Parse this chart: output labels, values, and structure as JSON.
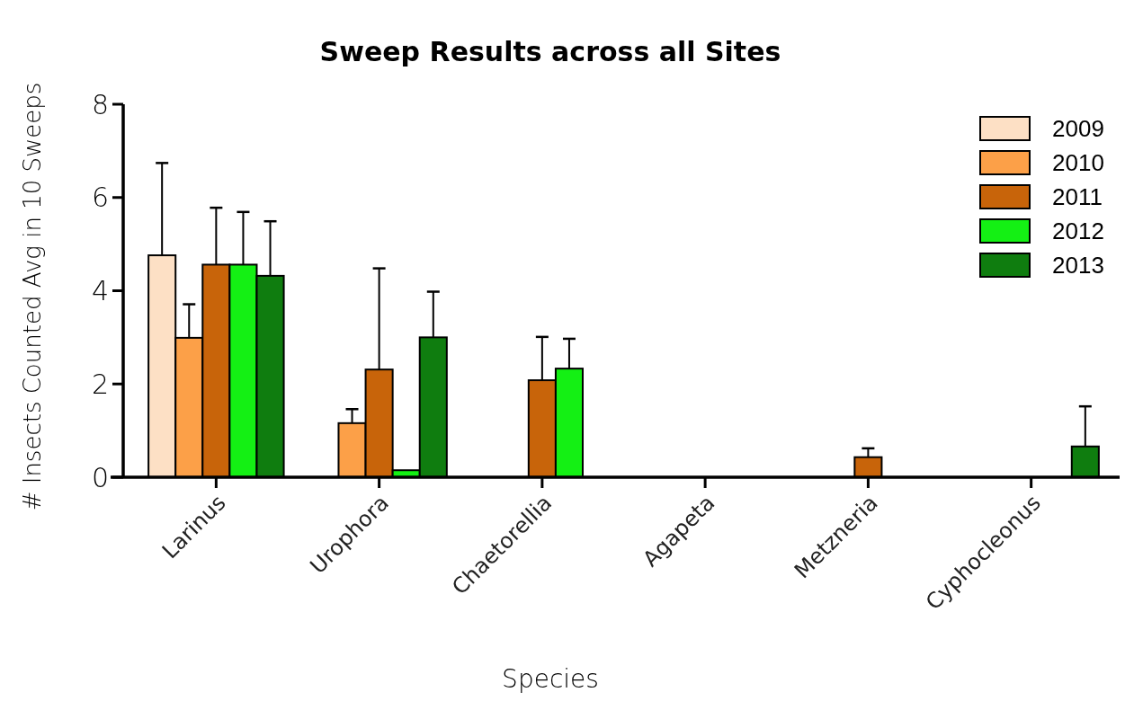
{
  "chart_data": {
    "type": "bar",
    "title": "Sweep Results across all Sites",
    "xlabel": "Species",
    "ylabel": "# Insects Counted Avg in 10 Sweeps",
    "categories": [
      "Larinus",
      "Urophora",
      "Chaetorellia",
      "Agapeta",
      "Metzneria",
      "Cyphocleonus"
    ],
    "ylim": [
      0,
      8
    ],
    "yticks": [
      0,
      2,
      4,
      6,
      8
    ],
    "legend": "top right",
    "series": [
      {
        "name": "2009",
        "color": "#fde0c5",
        "values": [
          4.76,
          null,
          null,
          null,
          null,
          null
        ],
        "errors": [
          [
            4.76,
            6.74
          ],
          null,
          null,
          null,
          null,
          null
        ]
      },
      {
        "name": "2010",
        "color": "#fca048",
        "values": [
          2.99,
          1.16,
          null,
          null,
          null,
          null
        ],
        "errors": [
          [
            2.99,
            3.71
          ],
          [
            1.16,
            1.46
          ],
          null,
          null,
          null,
          null
        ]
      },
      {
        "name": "2011",
        "color": "#c8640a",
        "values": [
          4.56,
          2.31,
          2.08,
          null,
          0.43,
          null
        ],
        "errors": [
          [
            4.56,
            5.78
          ],
          [
            2.31,
            4.48
          ],
          [
            2.08,
            3.01
          ],
          null,
          [
            0.43,
            0.62
          ],
          null
        ]
      },
      {
        "name": "2012",
        "color": "#14f014",
        "values": [
          4.56,
          0.15,
          2.33,
          null,
          null,
          null
        ],
        "errors": [
          [
            4.56,
            5.69
          ],
          null,
          [
            2.33,
            2.97
          ],
          null,
          null,
          null
        ]
      },
      {
        "name": "2013",
        "color": "#0f7d0f",
        "values": [
          4.32,
          3.0,
          null,
          null,
          null,
          0.66
        ],
        "errors": [
          [
            4.32,
            5.49
          ],
          [
            3.0,
            3.98
          ],
          null,
          null,
          null,
          [
            0.66,
            1.52
          ]
        ]
      }
    ]
  }
}
